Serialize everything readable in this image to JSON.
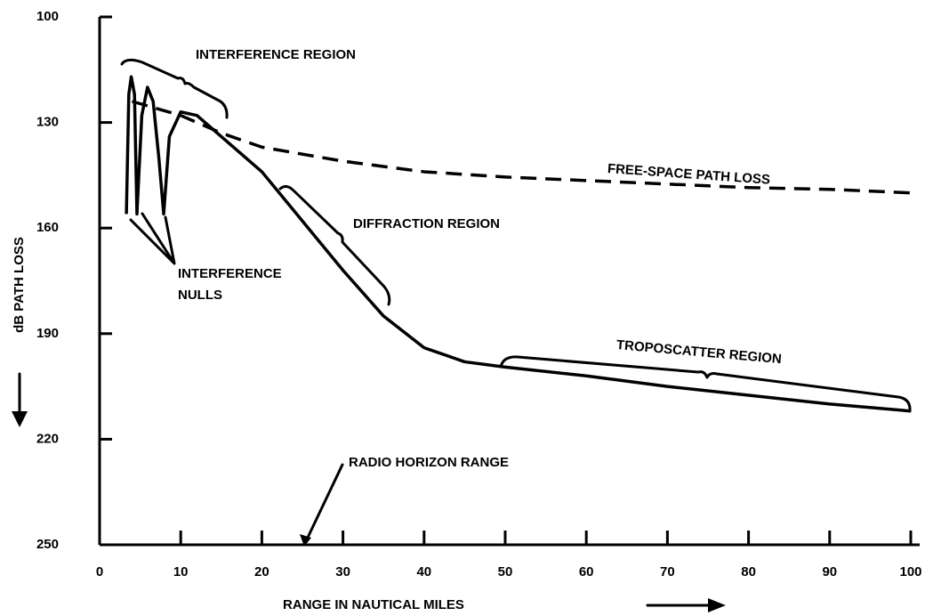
{
  "chart_data": {
    "type": "line",
    "xlabel": "RANGE IN NAUTICAL MILES",
    "ylabel": "dB PATH LOSS",
    "xlim": [
      0,
      100
    ],
    "xticks": [
      0,
      10,
      20,
      30,
      40,
      50,
      60,
      70,
      80,
      90,
      100
    ],
    "ylim": [
      250,
      100
    ],
    "yticks": [
      100,
      130,
      160,
      190,
      220,
      250
    ],
    "series": [
      {
        "name": "PATH LOSS",
        "color": "#000000",
        "dashed": false,
        "x": [
          3.3,
          3.6,
          3.9,
          4.3,
          4.6,
          5.2,
          5.9,
          6.6,
          7.3,
          7.9,
          8.6,
          10,
          12,
          15,
          20,
          25,
          30,
          35,
          40,
          45,
          50,
          60,
          70,
          80,
          90,
          100
        ],
        "values": [
          156,
          122,
          117,
          122,
          156,
          128,
          120,
          124,
          140,
          156,
          134,
          127,
          128,
          134,
          144,
          158,
          172,
          185,
          194,
          198,
          199.5,
          202,
          205,
          207.5,
          210,
          212
        ]
      },
      {
        "name": "FREE-SPACE PATH LOSS",
        "color": "#000000",
        "dashed": true,
        "x": [
          4,
          10,
          15,
          20,
          30,
          40,
          50,
          60,
          70,
          80,
          90,
          100
        ],
        "values": [
          124,
          128,
          133,
          137,
          141,
          144,
          145.5,
          146.5,
          147.5,
          148.5,
          149,
          150
        ]
      }
    ],
    "annotations": [
      "INTERFERENCE REGION",
      "DIFFRACTION REGION",
      "TROPOSCATTER REGION",
      "INTERFERENCE",
      "NULLS",
      "RADIO HORIZON RANGE"
    ]
  }
}
